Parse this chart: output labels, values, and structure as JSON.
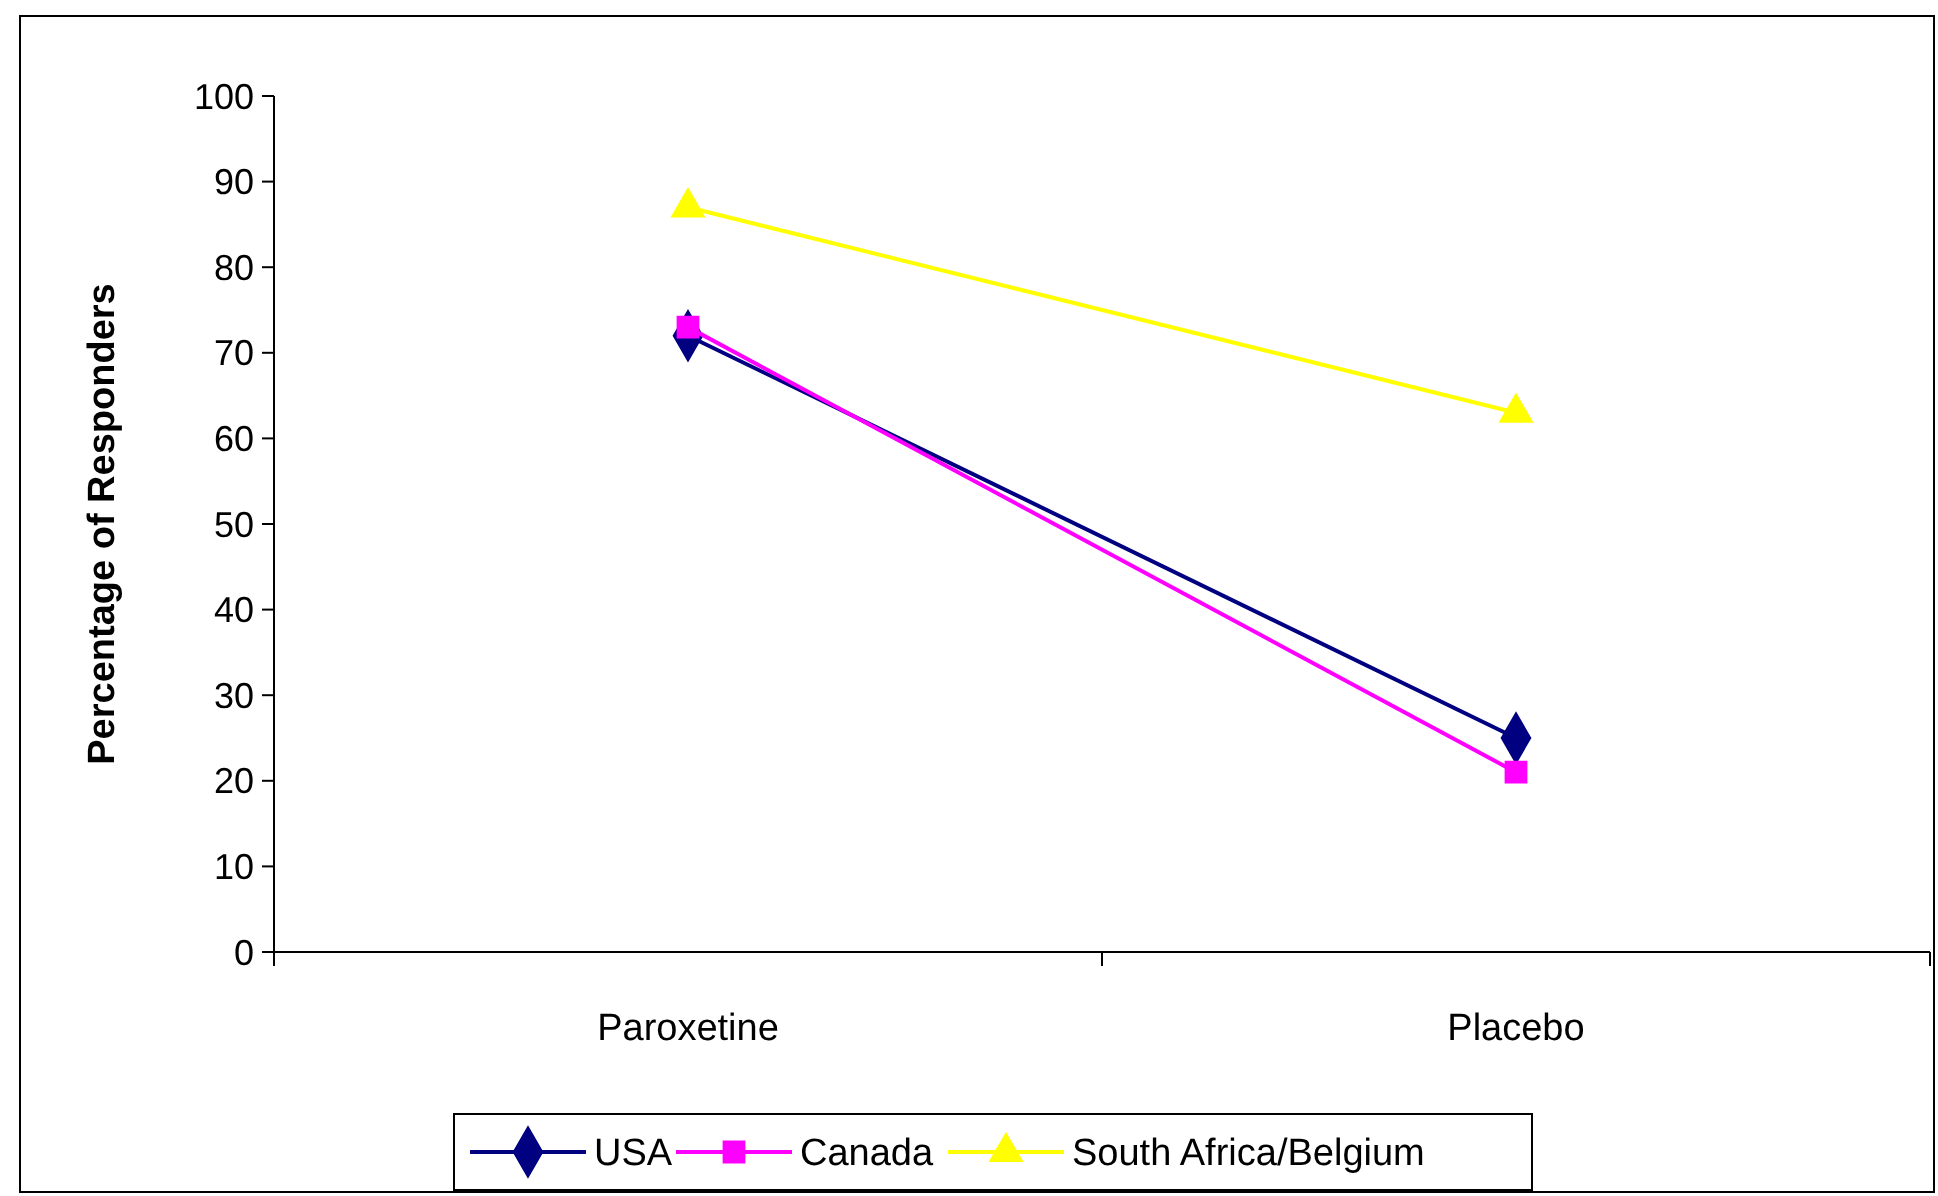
{
  "chart_data": {
    "type": "line",
    "ylabel": "Percentage of Responders",
    "categories": [
      "Paroxetine",
      "Placebo"
    ],
    "series": [
      {
        "name": "USA",
        "color": "#000080",
        "marker": "diamond",
        "values": [
          72,
          25
        ]
      },
      {
        "name": "Canada",
        "color": "#ff00ff",
        "marker": "square",
        "values": [
          73,
          21
        ]
      },
      {
        "name": "South Africa/Belgium",
        "color": "#ffff00",
        "marker": "triangle",
        "values": [
          87,
          63
        ]
      }
    ],
    "ylim": [
      0,
      100
    ],
    "yticks": [
      0,
      10,
      20,
      30,
      40,
      50,
      60,
      70,
      80,
      90,
      100
    ],
    "grid": false,
    "legend": "bottom"
  }
}
